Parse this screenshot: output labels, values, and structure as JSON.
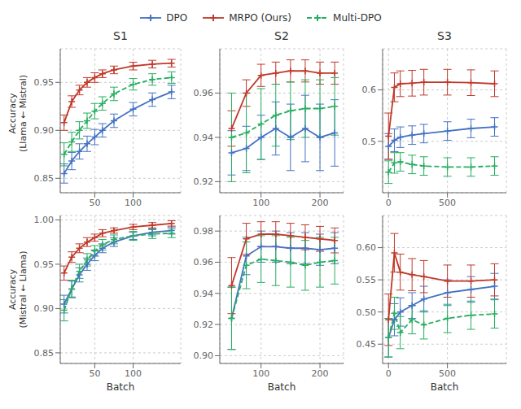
{
  "chart_data": [
    {
      "type": "line",
      "title": "S1",
      "ylabel": "Accuracy\n(Llama ← Mistral)",
      "legend": "top",
      "x": [
        10,
        20,
        30,
        40,
        50,
        60,
        75,
        100,
        125,
        150
      ],
      "series": [
        {
          "name": "DPO",
          "color": "#4472c4",
          "line_style": "solid",
          "marker": "plus",
          "values": [
            0.855,
            0.868,
            0.878,
            0.886,
            0.893,
            0.9,
            0.91,
            0.922,
            0.932,
            0.94
          ],
          "errors": [
            0.01,
            0.009,
            0.008,
            0.008,
            0.008,
            0.007,
            0.007,
            0.007,
            0.007,
            0.007
          ]
        },
        {
          "name": "MRPO (Ours)",
          "color": "#c0392b",
          "line_style": "solid",
          "marker": "plus",
          "values": [
            0.908,
            0.93,
            0.942,
            0.95,
            0.955,
            0.959,
            0.963,
            0.967,
            0.969,
            0.97
          ],
          "errors": [
            0.008,
            0.006,
            0.005,
            0.005,
            0.005,
            0.004,
            0.004,
            0.004,
            0.004,
            0.004
          ]
        },
        {
          "name": "Multi-DPO",
          "color": "#27ae60",
          "line_style": "dashed",
          "marker": "plus",
          "values": [
            0.875,
            0.888,
            0.9,
            0.91,
            0.92,
            0.928,
            0.938,
            0.948,
            0.953,
            0.955
          ],
          "errors": [
            0.012,
            0.01,
            0.009,
            0.008,
            0.008,
            0.007,
            0.007,
            0.006,
            0.006,
            0.006
          ]
        }
      ],
      "xlim": [
        5,
        162
      ],
      "ylim": [
        0.835,
        0.985
      ],
      "xticks": [
        50,
        100
      ],
      "yticks": [
        0.85,
        {
          "value": 0.9,
          "label": "0.90"
        },
        0.95
      ],
      "grid": true
    },
    {
      "type": "line",
      "title": "S2",
      "x": [
        50,
        75,
        100,
        125,
        150,
        175,
        200,
        225
      ],
      "series": [
        {
          "name": "DPO",
          "color": "#4472c4",
          "line_style": "solid",
          "marker": "plus",
          "values": [
            0.933,
            0.935,
            0.94,
            0.944,
            0.94,
            0.944,
            0.94,
            0.942
          ],
          "errors": [
            0.01,
            0.01,
            0.01,
            0.012,
            0.015,
            0.015,
            0.015,
            0.015
          ]
        },
        {
          "name": "MRPO (Ours)",
          "color": "#c0392b",
          "line_style": "solid",
          "marker": "plus",
          "values": [
            0.944,
            0.96,
            0.968,
            0.969,
            0.97,
            0.97,
            0.969,
            0.969
          ],
          "errors": [
            0.008,
            0.006,
            0.005,
            0.005,
            0.005,
            0.005,
            0.005,
            0.005
          ]
        },
        {
          "name": "Multi-DPO",
          "color": "#27ae60",
          "line_style": "dashed",
          "marker": "plus",
          "values": [
            0.94,
            0.942,
            0.946,
            0.95,
            0.952,
            0.953,
            0.953,
            0.954
          ],
          "errors": [
            0.02,
            0.018,
            0.016,
            0.014,
            0.013,
            0.013,
            0.013,
            0.013
          ]
        }
      ],
      "xlim": [
        30,
        240
      ],
      "ylim": [
        0.915,
        0.98
      ],
      "xticks": [
        100,
        200
      ],
      "yticks": [
        0.92,
        0.94,
        0.96
      ],
      "grid": true
    },
    {
      "type": "line",
      "title": "S3",
      "x": [
        0,
        50,
        100,
        200,
        300,
        500,
        700,
        900
      ],
      "series": [
        {
          "name": "DPO",
          "color": "#4472c4",
          "line_style": "solid",
          "marker": "plus",
          "values": [
            0.49,
            0.502,
            0.508,
            0.512,
            0.515,
            0.52,
            0.525,
            0.528
          ],
          "errors": [
            0.025,
            0.022,
            0.02,
            0.018,
            0.018,
            0.018,
            0.018,
            0.018
          ]
        },
        {
          "name": "MRPO (Ours)",
          "color": "#c0392b",
          "line_style": "solid",
          "marker": "plus",
          "values": [
            0.51,
            0.605,
            0.612,
            0.613,
            0.615,
            0.615,
            0.614,
            0.612
          ],
          "errors": [
            0.045,
            0.028,
            0.025,
            0.025,
            0.025,
            0.025,
            0.025,
            0.025
          ]
        },
        {
          "name": "Multi-DPO",
          "color": "#27ae60",
          "line_style": "dashed",
          "marker": "plus",
          "values": [
            0.44,
            0.458,
            0.46,
            0.455,
            0.452,
            0.45,
            0.45,
            0.452
          ],
          "errors": [
            0.022,
            0.02,
            0.018,
            0.018,
            0.018,
            0.018,
            0.018,
            0.018
          ]
        }
      ],
      "xlim": [
        -50,
        1000
      ],
      "ylim": [
        0.4,
        0.68
      ],
      "xticks": [
        0,
        500
      ],
      "yticks": [
        0.5,
        0.6
      ],
      "grid": true
    },
    {
      "type": "line",
      "ylabel": "Accuracy\n(Mistral ← Llama)",
      "xlabel": "Batch",
      "x": [
        10,
        20,
        30,
        40,
        50,
        60,
        75,
        100,
        125,
        150
      ],
      "series": [
        {
          "name": "DPO",
          "color": "#4472c4",
          "line_style": "solid",
          "marker": "plus",
          "values": [
            0.905,
            0.922,
            0.938,
            0.95,
            0.96,
            0.968,
            0.975,
            0.982,
            0.986,
            0.988
          ],
          "errors": [
            0.01,
            0.009,
            0.008,
            0.007,
            0.006,
            0.005,
            0.005,
            0.004,
            0.004,
            0.004
          ]
        },
        {
          "name": "MRPO (Ours)",
          "color": "#c0392b",
          "line_style": "solid",
          "marker": "plus",
          "values": [
            0.94,
            0.958,
            0.968,
            0.975,
            0.98,
            0.985,
            0.988,
            0.992,
            0.994,
            0.996
          ],
          "errors": [
            0.008,
            0.006,
            0.005,
            0.005,
            0.004,
            0.004,
            0.003,
            0.003,
            0.003,
            0.003
          ]
        },
        {
          "name": "Multi-DPO",
          "color": "#27ae60",
          "line_style": "dashed",
          "marker": "plus",
          "values": [
            0.898,
            0.922,
            0.942,
            0.955,
            0.965,
            0.972,
            0.978,
            0.982,
            0.984,
            0.985
          ],
          "errors": [
            0.012,
            0.01,
            0.008,
            0.007,
            0.006,
            0.006,
            0.005,
            0.005,
            0.005,
            0.005
          ]
        }
      ],
      "xlim": [
        5,
        162
      ],
      "ylim": [
        0.838,
        1.005
      ],
      "xticks": [
        50,
        100
      ],
      "yticks": [
        0.85,
        {
          "value": 0.9,
          "label": "0.90"
        },
        0.95,
        {
          "value": 1,
          "label": "1.00"
        }
      ],
      "grid": true
    },
    {
      "type": "line",
      "xlabel": "Batch",
      "x": [
        50,
        75,
        100,
        125,
        150,
        175,
        200,
        225
      ],
      "series": [
        {
          "name": "DPO",
          "color": "#4472c4",
          "line_style": "solid",
          "marker": "plus",
          "values": [
            0.924,
            0.964,
            0.97,
            0.97,
            0.969,
            0.969,
            0.968,
            0.969
          ],
          "errors": [
            0.02,
            0.012,
            0.01,
            0.01,
            0.01,
            0.01,
            0.01,
            0.01
          ]
        },
        {
          "name": "MRPO (Ours)",
          "color": "#c0392b",
          "line_style": "solid",
          "marker": "plus",
          "values": [
            0.945,
            0.975,
            0.978,
            0.978,
            0.977,
            0.976,
            0.975,
            0.974
          ],
          "errors": [
            0.018,
            0.01,
            0.008,
            0.008,
            0.008,
            0.008,
            0.008,
            0.008
          ]
        },
        {
          "name": "Multi-DPO",
          "color": "#27ae60",
          "line_style": "dashed",
          "marker": "plus",
          "values": [
            0.924,
            0.958,
            0.962,
            0.961,
            0.96,
            0.958,
            0.96,
            0.961
          ],
          "errors": [
            0.02,
            0.015,
            0.015,
            0.016,
            0.016,
            0.016,
            0.016,
            0.015
          ]
        }
      ],
      "xlim": [
        30,
        240
      ],
      "ylim": [
        0.895,
        0.99
      ],
      "xticks": [
        100,
        200
      ],
      "yticks": [
        {
          "value": 0.9,
          "label": "0.90"
        },
        0.92,
        0.94,
        0.96,
        0.98
      ],
      "grid": true
    },
    {
      "type": "line",
      "xlabel": "Batch",
      "x": [
        0,
        50,
        100,
        200,
        300,
        500,
        700,
        900
      ],
      "series": [
        {
          "name": "DPO",
          "color": "#4472c4",
          "line_style": "solid",
          "marker": "plus",
          "values": [
            0.46,
            0.488,
            0.5,
            0.51,
            0.52,
            0.53,
            0.535,
            0.54
          ],
          "errors": [
            0.03,
            0.025,
            0.022,
            0.02,
            0.02,
            0.02,
            0.02,
            0.02
          ]
        },
        {
          "name": "MRPO (Ours)",
          "color": "#c0392b",
          "line_style": "solid",
          "marker": "plus",
          "values": [
            0.488,
            0.592,
            0.562,
            0.558,
            0.555,
            0.548,
            0.548,
            0.55
          ],
          "errors": [
            0.04,
            0.03,
            0.028,
            0.025,
            0.025,
            0.025,
            0.025,
            0.025
          ]
        },
        {
          "name": "Multi-DPO",
          "color": "#27ae60",
          "line_style": "dashed",
          "marker": "plus",
          "values": [
            0.46,
            0.498,
            0.468,
            0.488,
            0.48,
            0.49,
            0.495,
            0.497
          ],
          "errors": [
            0.03,
            0.025,
            0.025,
            0.022,
            0.022,
            0.022,
            0.022,
            0.022
          ]
        }
      ],
      "xlim": [
        -50,
        1000
      ],
      "ylim": [
        0.42,
        0.65
      ],
      "xticks": [
        0,
        500
      ],
      "yticks": [
        0.45,
        {
          "value": 0.5,
          "label": "0.50"
        },
        0.55,
        {
          "value": 0.6,
          "label": "0.60"
        }
      ],
      "grid": true
    }
  ]
}
